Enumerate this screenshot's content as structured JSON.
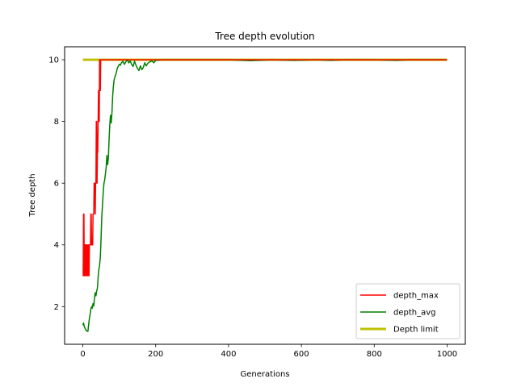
{
  "chart_data": {
    "type": "line",
    "title": "Tree depth evolution",
    "xlabel": "Generations",
    "ylabel": "Tree depth",
    "xlim": [
      -50,
      1050
    ],
    "ylim": [
      0.78,
      10.42
    ],
    "xticks": [
      0,
      200,
      400,
      600,
      800,
      1000
    ],
    "yticks": [
      2,
      4,
      6,
      8,
      10
    ],
    "grid": false,
    "legend_position": "lower-right",
    "series": [
      {
        "name": "depth_max",
        "color": "#ff0000",
        "x": [
          0,
          1,
          2,
          3,
          4,
          5,
          6,
          7,
          8,
          9,
          10,
          11,
          12,
          13,
          14,
          15,
          16,
          17,
          18,
          19,
          20,
          21,
          22,
          23,
          24,
          25,
          26,
          27,
          28,
          29,
          30,
          31,
          32,
          33,
          34,
          35,
          36,
          37,
          38,
          39,
          40,
          41,
          42,
          43,
          44,
          45,
          46,
          47,
          48,
          49,
          50,
          60,
          100,
          200,
          400,
          600,
          800,
          1000
        ],
        "values": [
          3,
          3,
          5,
          5,
          3,
          3,
          4,
          4,
          3,
          3,
          4,
          4,
          3,
          3,
          4,
          4,
          3,
          3,
          4,
          4,
          4,
          4,
          5,
          5,
          4,
          4,
          4,
          4,
          5,
          5,
          5,
          6,
          6,
          6,
          5,
          6,
          6,
          8,
          8,
          6,
          7,
          7,
          8,
          9,
          9,
          8,
          10,
          10,
          9,
          10,
          10,
          10,
          10,
          10,
          10,
          10,
          10,
          10
        ]
      },
      {
        "name": "depth_avg",
        "color": "#008000",
        "x": [
          0,
          2,
          4,
          6,
          8,
          10,
          12,
          14,
          16,
          18,
          20,
          22,
          24,
          26,
          28,
          30,
          32,
          34,
          36,
          38,
          40,
          42,
          44,
          46,
          48,
          50,
          52,
          54,
          56,
          58,
          60,
          62,
          64,
          66,
          68,
          70,
          72,
          74,
          76,
          78,
          80,
          82,
          84,
          86,
          88,
          90,
          92,
          94,
          96,
          98,
          100,
          103,
          106,
          110,
          114,
          118,
          122,
          126,
          130,
          134,
          138,
          142,
          146,
          150,
          154,
          158,
          162,
          166,
          170,
          174,
          178,
          182,
          186,
          190,
          195,
          200,
          220,
          260,
          300,
          400,
          460,
          520,
          580,
          640,
          680,
          720,
          800,
          860,
          900,
          1000
        ],
        "values": [
          1.4,
          1.47,
          1.35,
          1.3,
          1.25,
          1.22,
          1.2,
          1.2,
          1.42,
          1.62,
          1.75,
          1.92,
          2.0,
          1.95,
          2.1,
          2.02,
          2.28,
          2.45,
          2.35,
          2.5,
          2.6,
          2.95,
          3.2,
          3.35,
          3.6,
          4.2,
          4.9,
          5.3,
          5.7,
          6.0,
          6.1,
          6.3,
          6.5,
          6.9,
          6.6,
          6.8,
          7.4,
          7.9,
          8.2,
          7.95,
          8.3,
          8.85,
          9.15,
          9.35,
          9.45,
          9.5,
          9.58,
          9.7,
          9.76,
          9.8,
          9.85,
          9.82,
          9.9,
          9.95,
          9.85,
          9.93,
          10.0,
          9.9,
          9.96,
          9.85,
          9.78,
          9.95,
          9.82,
          9.72,
          9.65,
          9.8,
          9.68,
          9.75,
          9.9,
          9.8,
          9.88,
          9.92,
          9.94,
          9.96,
          9.9,
          9.98,
          10.0,
          10.0,
          10.0,
          10.0,
          9.97,
          10.0,
          9.98,
          10.0,
          9.98,
          10.0,
          10.0,
          9.98,
          10.0,
          10.0
        ]
      },
      {
        "name": "Depth limit",
        "color": "#bfbf00",
        "x": [
          0,
          1000
        ],
        "values": [
          10,
          10
        ]
      }
    ]
  }
}
